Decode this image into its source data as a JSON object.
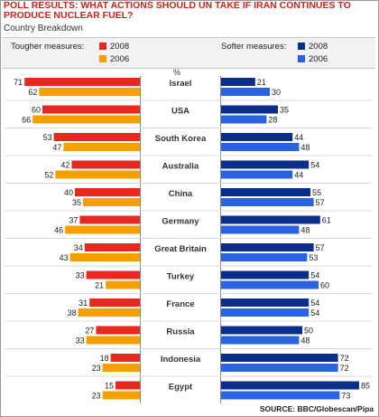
{
  "title": "POLL RESULTS: WHAT ACTIONS SHOULD UN TAKE IF IRAN CONTINUES TO PRODUCE NUCLEAR FUEL?",
  "subtitle": "Country Breakdown",
  "legend": {
    "tougher_label": "Tougher measures:",
    "softer_label": "Softer measures:",
    "year_2008": "2008",
    "year_2006": "2006"
  },
  "unit_label": "%",
  "source": "SOURCE: BBC/Globescan/Pipa",
  "colors": {
    "tougher_2008": "#e8281e",
    "tougher_2006": "#f5a000",
    "softer_2008": "#0b2e8a",
    "softer_2006": "#2a63e0"
  },
  "chart_data": {
    "type": "bar",
    "title": "POLL RESULTS: WHAT ACTIONS SHOULD UN TAKE IF IRAN CONTINUES TO PRODUCE NUCLEAR FUEL?",
    "categories": [
      "Israel",
      "USA",
      "South Korea",
      "Australia",
      "China",
      "Germany",
      "Great Britain",
      "Turkey",
      "France",
      "Russia",
      "Indonesia",
      "Egypt"
    ],
    "series": [
      {
        "name": "Tougher measures: 2008",
        "values": [
          71,
          60,
          53,
          42,
          40,
          37,
          34,
          33,
          31,
          27,
          18,
          15
        ]
      },
      {
        "name": "Tougher measures: 2006",
        "values": [
          62,
          66,
          47,
          52,
          35,
          46,
          43,
          21,
          38,
          33,
          23,
          23
        ]
      },
      {
        "name": "Softer measures: 2008",
        "values": [
          21,
          35,
          44,
          54,
          55,
          61,
          57,
          54,
          54,
          50,
          72,
          85
        ]
      },
      {
        "name": "Softer measures: 2006",
        "values": [
          30,
          28,
          48,
          44,
          57,
          48,
          53,
          60,
          54,
          48,
          72,
          73
        ]
      }
    ],
    "ylabel": "%",
    "xlim": [
      0,
      85
    ]
  }
}
